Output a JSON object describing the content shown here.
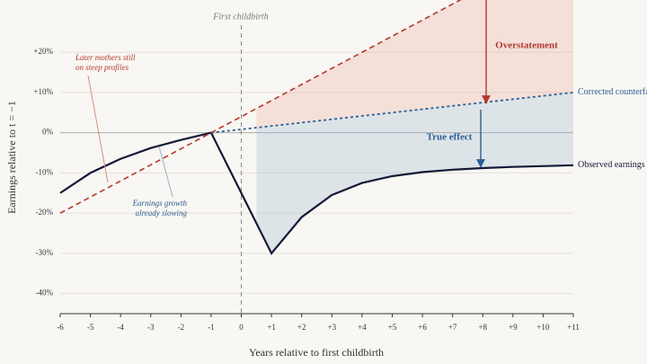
{
  "chart_data": {
    "type": "line",
    "x_label": "Years relative to first childbirth",
    "y_label": "Earnings relative to t = −1",
    "xlim": [
      -6,
      11
    ],
    "ylim": [
      -45,
      33
    ],
    "xticks": [
      -6,
      -5,
      -4,
      -3,
      -2,
      -1,
      0,
      {
        "value": 1,
        "label": "+1"
      },
      {
        "value": 2,
        "label": "+2"
      },
      {
        "value": 3,
        "label": "+3"
      },
      {
        "value": 4,
        "label": "+4"
      },
      {
        "value": 5,
        "label": "+5"
      },
      {
        "value": 6,
        "label": "+6"
      },
      {
        "value": 7,
        "label": "+7"
      },
      {
        "value": 8,
        "label": "+8"
      },
      {
        "value": 9,
        "label": "+9"
      },
      {
        "value": 10,
        "label": "+10"
      },
      {
        "value": 11,
        "label": "+11"
      }
    ],
    "yticks": [
      {
        "value": 20,
        "label": "+20%"
      },
      {
        "value": 10,
        "label": "+10%"
      },
      {
        "value": 0,
        "label": "0%"
      },
      {
        "value": -10,
        "label": "-10%"
      },
      {
        "value": -20,
        "label": "-20%"
      },
      {
        "value": -30,
        "label": "-30%"
      },
      {
        "value": -40,
        "label": "-40%"
      }
    ],
    "grid": true,
    "series": [
      {
        "name": "Observed earnings",
        "color": "#151a38",
        "x": [
          -6,
          -5,
          -4,
          -3,
          -2,
          -1,
          0,
          1,
          2,
          3,
          4,
          5,
          6,
          7,
          8,
          9,
          10,
          11
        ],
        "values": [
          -15,
          -10,
          -6.5,
          -3.8,
          -1.8,
          0,
          -15,
          -30,
          -21,
          -15.5,
          -12.5,
          -10.8,
          -9.8,
          -9.2,
          -8.8,
          -8.5,
          -8.3,
          -8.1
        ]
      },
      {
        "name": "Corrected counterfactual",
        "color": "#2a5f93",
        "x": [
          -1,
          11
        ],
        "values": [
          0,
          10
        ]
      },
      {
        "color": "#b03a2e",
        "x": [
          -6,
          11
        ],
        "values": [
          -20,
          48
        ]
      }
    ],
    "event": {
      "x": 0,
      "label": "First childbirth"
    },
    "annotations": {
      "later_mothers": [
        "Later mothers still",
        "on steep profiles"
      ],
      "growth_slowing": [
        "Earnings growth",
        "already slowing"
      ],
      "overstatement": "Overstatement",
      "true_effect": "True effect"
    }
  }
}
